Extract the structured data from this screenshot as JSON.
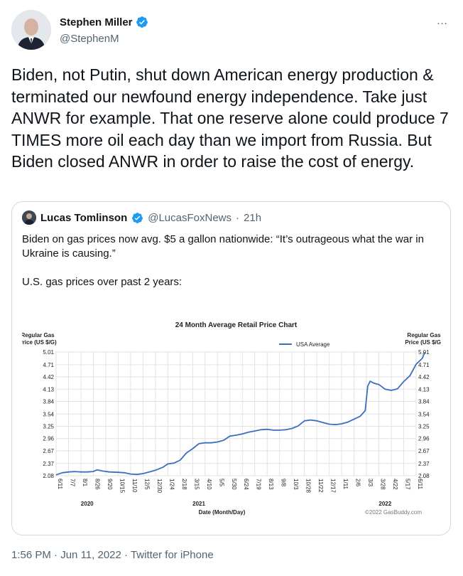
{
  "tweet": {
    "author_name": "Stephen Miller",
    "author_handle": "@StephenM",
    "more_icon": "…",
    "text": "Biden, not Putin, shut down American energy production & terminated our newfound energy independence. Take just ANWR for example. That one reserve alone could produce 7 TIMES more oil each day than we import from Russia. But Biden closed ANWR in order to raise the cost of energy.",
    "time": "1:56 PM",
    "date": "Jun 11, 2022",
    "source": "Twitter for iPhone",
    "separator": "·"
  },
  "quote": {
    "author_name": "Lucas Tomlinson",
    "author_handle": "@LucasFoxNews",
    "separator": "·",
    "time": "21h",
    "text_line1": "Biden on gas prices now avg. $5 a gallon nationwide: “It’s outrageous what the war in Ukraine is causing.”",
    "text_line2": "U.S. gas prices over past 2 years:"
  },
  "colors": {
    "verified": "#1d9bf0",
    "series": "#3a6fbe",
    "text_secondary": "#536471"
  },
  "chart_data": {
    "type": "line",
    "title": "24 Month Average Retail Price Chart",
    "ylabel_left": "Regular Gas Price (US $/G)",
    "ylabel_right": "Regular Gas Price (US $/G)",
    "xlabel": "Date (Month/Day)",
    "credit": "©2022 GasBuddy.com",
    "legend": "USA Average",
    "legend_position": "top-right",
    "grid": true,
    "ylim": [
      2.08,
      5.01
    ],
    "yticks": [
      "5.01",
      "4.71",
      "4.42",
      "4.13",
      "3.84",
      "3.54",
      "3.25",
      "2.96",
      "2.67",
      "2.37",
      "2.08"
    ],
    "xticks": [
      "6/11",
      "7/7",
      "8/1",
      "8/26",
      "9/20",
      "10/15",
      "11/10",
      "12/5",
      "12/30",
      "1/24",
      "2/18",
      "3/15",
      "4/10",
      "5/5",
      "5/30",
      "6/24",
      "7/19",
      "8/13",
      "9/8",
      "10/3",
      "10/28",
      "11/22",
      "12/17",
      "1/11",
      "2/6",
      "3/3",
      "3/28",
      "4/22",
      "5/17",
      "6/11"
    ],
    "year_labels": [
      {
        "label": "2020",
        "tick_index": 2.5
      },
      {
        "label": "2021",
        "tick_index": 11.5
      },
      {
        "label": "2022",
        "tick_index": 26.5
      }
    ],
    "series": [
      {
        "name": "USA Average",
        "points": [
          [
            0,
            2.1
          ],
          [
            0.5,
            2.15
          ],
          [
            1,
            2.17
          ],
          [
            1.5,
            2.18
          ],
          [
            2,
            2.17
          ],
          [
            2.5,
            2.17
          ],
          [
            3,
            2.18
          ],
          [
            3.3,
            2.22
          ],
          [
            3.8,
            2.19
          ],
          [
            4.3,
            2.17
          ],
          [
            5,
            2.16
          ],
          [
            5.5,
            2.15
          ],
          [
            6,
            2.12
          ],
          [
            6.5,
            2.11
          ],
          [
            7,
            2.13
          ],
          [
            7.5,
            2.17
          ],
          [
            8,
            2.21
          ],
          [
            8.6,
            2.28
          ],
          [
            9,
            2.36
          ],
          [
            9.5,
            2.38
          ],
          [
            10,
            2.45
          ],
          [
            10.5,
            2.62
          ],
          [
            11,
            2.72
          ],
          [
            11.5,
            2.84
          ],
          [
            12,
            2.86
          ],
          [
            12.5,
            2.86
          ],
          [
            13,
            2.88
          ],
          [
            13.5,
            2.92
          ],
          [
            14,
            3.02
          ],
          [
            14.5,
            3.04
          ],
          [
            15,
            3.07
          ],
          [
            15.5,
            3.11
          ],
          [
            16,
            3.14
          ],
          [
            16.5,
            3.17
          ],
          [
            17,
            3.18
          ],
          [
            17.5,
            3.16
          ],
          [
            18,
            3.16
          ],
          [
            18.5,
            3.17
          ],
          [
            19,
            3.2
          ],
          [
            19.5,
            3.26
          ],
          [
            20,
            3.38
          ],
          [
            20.5,
            3.4
          ],
          [
            21,
            3.38
          ],
          [
            21.5,
            3.34
          ],
          [
            22,
            3.3
          ],
          [
            22.5,
            3.29
          ],
          [
            23,
            3.31
          ],
          [
            23.5,
            3.35
          ],
          [
            24,
            3.42
          ],
          [
            24.5,
            3.49
          ],
          [
            24.9,
            3.62
          ],
          [
            25.1,
            4.2
          ],
          [
            25.3,
            4.32
          ],
          [
            25.6,
            4.27
          ],
          [
            26,
            4.24
          ],
          [
            26.5,
            4.13
          ],
          [
            27,
            4.1
          ],
          [
            27.5,
            4.14
          ],
          [
            28,
            4.31
          ],
          [
            28.5,
            4.45
          ],
          [
            29,
            4.72
          ],
          [
            29.5,
            4.86
          ],
          [
            29.7,
            5.01
          ]
        ]
      }
    ]
  }
}
